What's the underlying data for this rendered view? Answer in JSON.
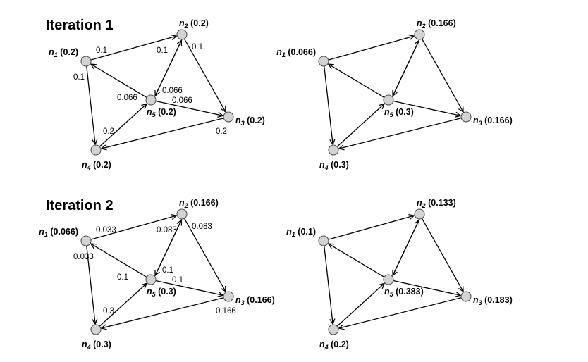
{
  "headings": {
    "iteration_1": "Iteration 1",
    "iteration_2": "Iteration 2"
  },
  "panels": [
    {
      "nodes": {
        "n1": "0.2",
        "n2": "0.2",
        "n3": "0.2",
        "n4": "0.2",
        "n5": "0.2"
      },
      "edge_labels": {
        "n1_n2": "0.1",
        "n1_n4": "0.1",
        "n2_n5": "0.1",
        "n2_n3": "0.1",
        "n5_n1": "0.066",
        "n5_n2": "0.066",
        "n5_n3": "0.066",
        "n4_n5": "0.2",
        "n3_n4": "0.2"
      }
    },
    {
      "nodes": {
        "n1": "0.066",
        "n2": "0.166",
        "n3": "0.166",
        "n4": "0.3",
        "n5": "0.3"
      },
      "edge_labels": {}
    },
    {
      "nodes": {
        "n1": "0.066",
        "n2": "0.166",
        "n3": "0.166",
        "n4": "0.3",
        "n5": "0.3"
      },
      "edge_labels": {
        "n1_n2": "0.033",
        "n1_n4": "0.033",
        "n2_n5": "0.083",
        "n2_n3": "0.083",
        "n5_n1": "0.1",
        "n5_n2": "0.1",
        "n5_n3": "0.1",
        "n4_n5": "0.3",
        "n3_n4": "0.166"
      }
    },
    {
      "nodes": {
        "n1": "0.1",
        "n2": "0.133",
        "n3": "0.183",
        "n4": "0.2",
        "n5": "0.383"
      },
      "edge_labels": {}
    }
  ]
}
